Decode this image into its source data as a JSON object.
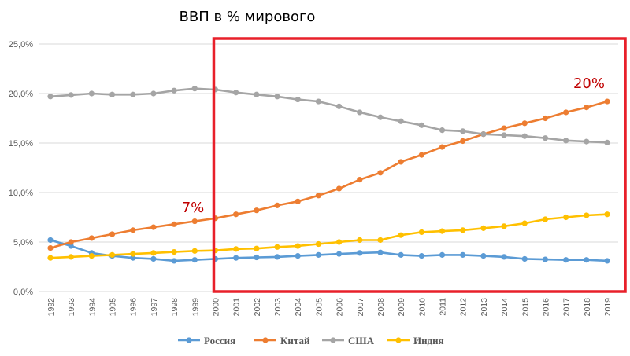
{
  "chart_data": {
    "type": "line",
    "title": "ВВП в % мирового",
    "x": [
      "1992",
      "1993",
      "1994",
      "1995",
      "1996",
      "1997",
      "1998",
      "1999",
      "2000",
      "2001",
      "2002",
      "2003",
      "2004",
      "2005",
      "2006",
      "2007",
      "2008",
      "2009",
      "2010",
      "2011",
      "2012",
      "2013",
      "2014",
      "2015",
      "2016",
      "2017",
      "2018",
      "2019"
    ],
    "ylim": [
      0,
      25
    ],
    "yticks": [
      "0,0%",
      "5,0%",
      "10,0%",
      "15,0%",
      "20,0%",
      "25,0%"
    ],
    "grid": true,
    "legend_position": "bottom",
    "series": [
      {
        "name": "Россия",
        "color": "#5b9bd5",
        "values": [
          5.2,
          4.6,
          3.9,
          3.6,
          3.4,
          3.3,
          3.1,
          3.2,
          3.3,
          3.4,
          3.45,
          3.5,
          3.6,
          3.7,
          3.8,
          3.9,
          3.95,
          3.7,
          3.6,
          3.7,
          3.7,
          3.6,
          3.5,
          3.3,
          3.25,
          3.2,
          3.2,
          3.1
        ]
      },
      {
        "name": "Китай",
        "color": "#ed7d31",
        "values": [
          4.4,
          5.0,
          5.4,
          5.8,
          6.2,
          6.5,
          6.8,
          7.1,
          7.4,
          7.8,
          8.2,
          8.7,
          9.1,
          9.7,
          10.4,
          11.3,
          12.0,
          13.1,
          13.8,
          14.6,
          15.2,
          15.9,
          16.5,
          17.0,
          17.5,
          18.1,
          18.6,
          19.2
        ]
      },
      {
        "name": "США",
        "color": "#a5a5a5",
        "values": [
          19.7,
          19.85,
          20.0,
          19.9,
          19.9,
          20.0,
          20.3,
          20.5,
          20.4,
          20.1,
          19.9,
          19.7,
          19.4,
          19.2,
          18.7,
          18.1,
          17.6,
          17.2,
          16.8,
          16.3,
          16.2,
          15.9,
          15.8,
          15.7,
          15.5,
          15.25,
          15.15,
          15.05
        ]
      },
      {
        "name": "Индия",
        "color": "#ffc000",
        "values": [
          3.4,
          3.5,
          3.6,
          3.7,
          3.8,
          3.9,
          4.0,
          4.1,
          4.15,
          4.3,
          4.35,
          4.5,
          4.6,
          4.8,
          5.0,
          5.2,
          5.2,
          5.7,
          6.0,
          6.1,
          6.2,
          6.4,
          6.6,
          6.9,
          7.3,
          7.5,
          7.7,
          7.8
        ]
      }
    ],
    "annotations": [
      {
        "text": "7%",
        "color": "#c00000"
      },
      {
        "text": "20%",
        "color": "#c00000"
      }
    ],
    "highlight_box": {
      "from": "2000",
      "to": "2019",
      "color": "#e8202a"
    }
  }
}
